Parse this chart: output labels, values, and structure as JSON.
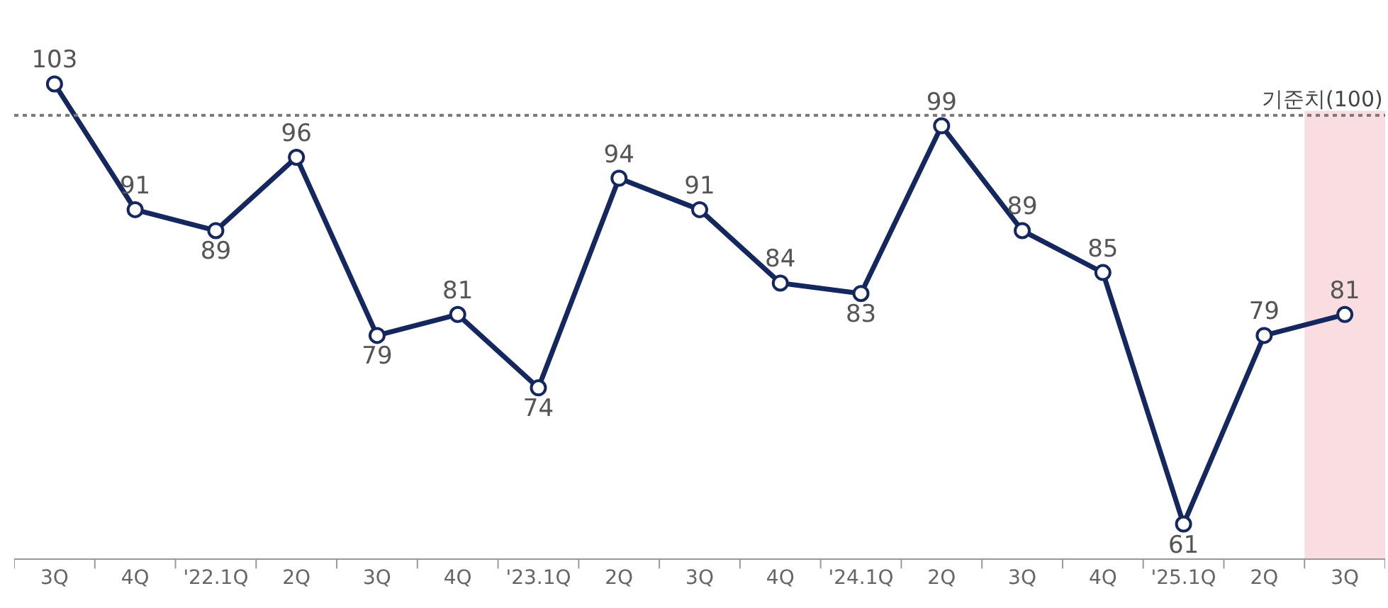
{
  "chart_data": {
    "type": "line",
    "categories": [
      "3Q",
      "4Q",
      "'22.1Q",
      "2Q",
      "3Q",
      "4Q",
      "'23.1Q",
      "2Q",
      "3Q",
      "4Q",
      "'24.1Q",
      "2Q",
      "3Q",
      "4Q",
      "'25.1Q",
      "2Q",
      "3Q"
    ],
    "series": [
      {
        "color": "#14275e",
        "values": [
          103,
          91,
          89,
          96,
          79,
          81,
          74,
          94,
          91,
          84,
          83,
          99,
          89,
          85,
          61,
          79,
          81
        ]
      }
    ],
    "data_labels": true,
    "marker": "circle",
    "line_style": "solid",
    "tick_labels": "x",
    "ref_lines": [
      {
        "axis": "y",
        "value": 100,
        "label": "기준치(100)",
        "color": "#777777",
        "line_style": "dotted"
      }
    ]
  }
}
